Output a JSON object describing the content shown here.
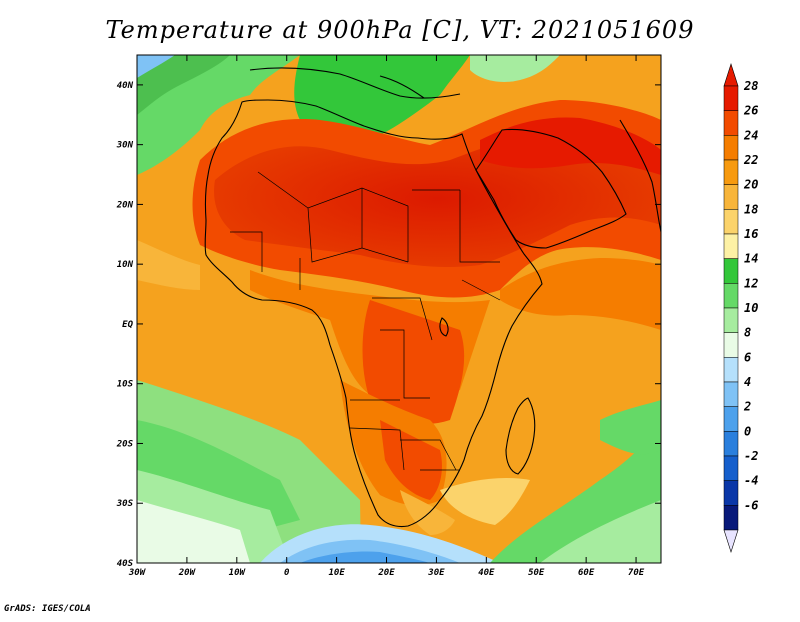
{
  "title": "Temperature at 900hPa [C], VT: 2021051609",
  "credit": "GrADS: IGES/COLA",
  "map": {
    "lon_range": [
      -30,
      75
    ],
    "lat_range": [
      -40,
      45
    ],
    "lon_ticks": [
      "30W",
      "20W",
      "10W",
      "0",
      "10E",
      "20E",
      "30E",
      "40E",
      "50E",
      "60E",
      "70E"
    ],
    "lat_ticks": [
      "40N",
      "30N",
      "20N",
      "10N",
      "EQ",
      "10S",
      "20S",
      "30S",
      "40S"
    ]
  },
  "colorbar": {
    "labels": [
      "28",
      "26",
      "24",
      "22",
      "20",
      "18",
      "16",
      "14",
      "12",
      "10",
      "8",
      "6",
      "4",
      "2",
      "0",
      "-2",
      "-4",
      "-6"
    ],
    "colors": [
      "#e61a00",
      "#f24b00",
      "#f57d00",
      "#f79a0f",
      "#f8b53a",
      "#fbd36b",
      "#fdf1a5",
      "#33c73a",
      "#65d967",
      "#a6ec9f",
      "#e9fbe6",
      "#b5e0fb",
      "#7fc2f5",
      "#4da1ec",
      "#2a7fdd",
      "#155fcc",
      "#0a37a8",
      "#08197a"
    ]
  }
}
